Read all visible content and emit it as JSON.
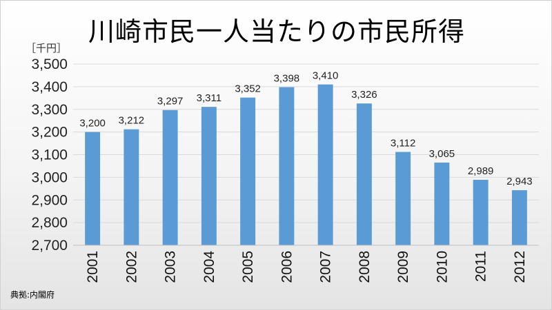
{
  "chart_data": {
    "type": "bar",
    "title": "川崎市民一人当たりの市民所得",
    "unit_label": "［千円］",
    "source_label": "典拠:内閣府",
    "categories": [
      "2001",
      "2002",
      "2003",
      "2004",
      "2005",
      "2006",
      "2007",
      "2008",
      "2009",
      "2010",
      "2011",
      "2012"
    ],
    "values": [
      3200,
      3212,
      3297,
      3311,
      3352,
      3398,
      3410,
      3326,
      3112,
      3065,
      2989,
      2943
    ],
    "data_labels": [
      "3,200",
      "3,212",
      "3,297",
      "3,311",
      "3,352",
      "3,398",
      "3,410",
      "3,326",
      "3,112",
      "3,065",
      "2,989",
      "2,943"
    ],
    "ylim": [
      2700,
      3500
    ],
    "yticks": [
      2700,
      2800,
      2900,
      3000,
      3100,
      3200,
      3300,
      3400,
      3500
    ],
    "ytick_labels": [
      "2,700",
      "2,800",
      "2,900",
      "3,000",
      "3,100",
      "3,200",
      "3,300",
      "3,400",
      "3,500"
    ],
    "grid": true,
    "bar_color": "#5b9bd5",
    "grid_color": "#d9d9d9"
  }
}
